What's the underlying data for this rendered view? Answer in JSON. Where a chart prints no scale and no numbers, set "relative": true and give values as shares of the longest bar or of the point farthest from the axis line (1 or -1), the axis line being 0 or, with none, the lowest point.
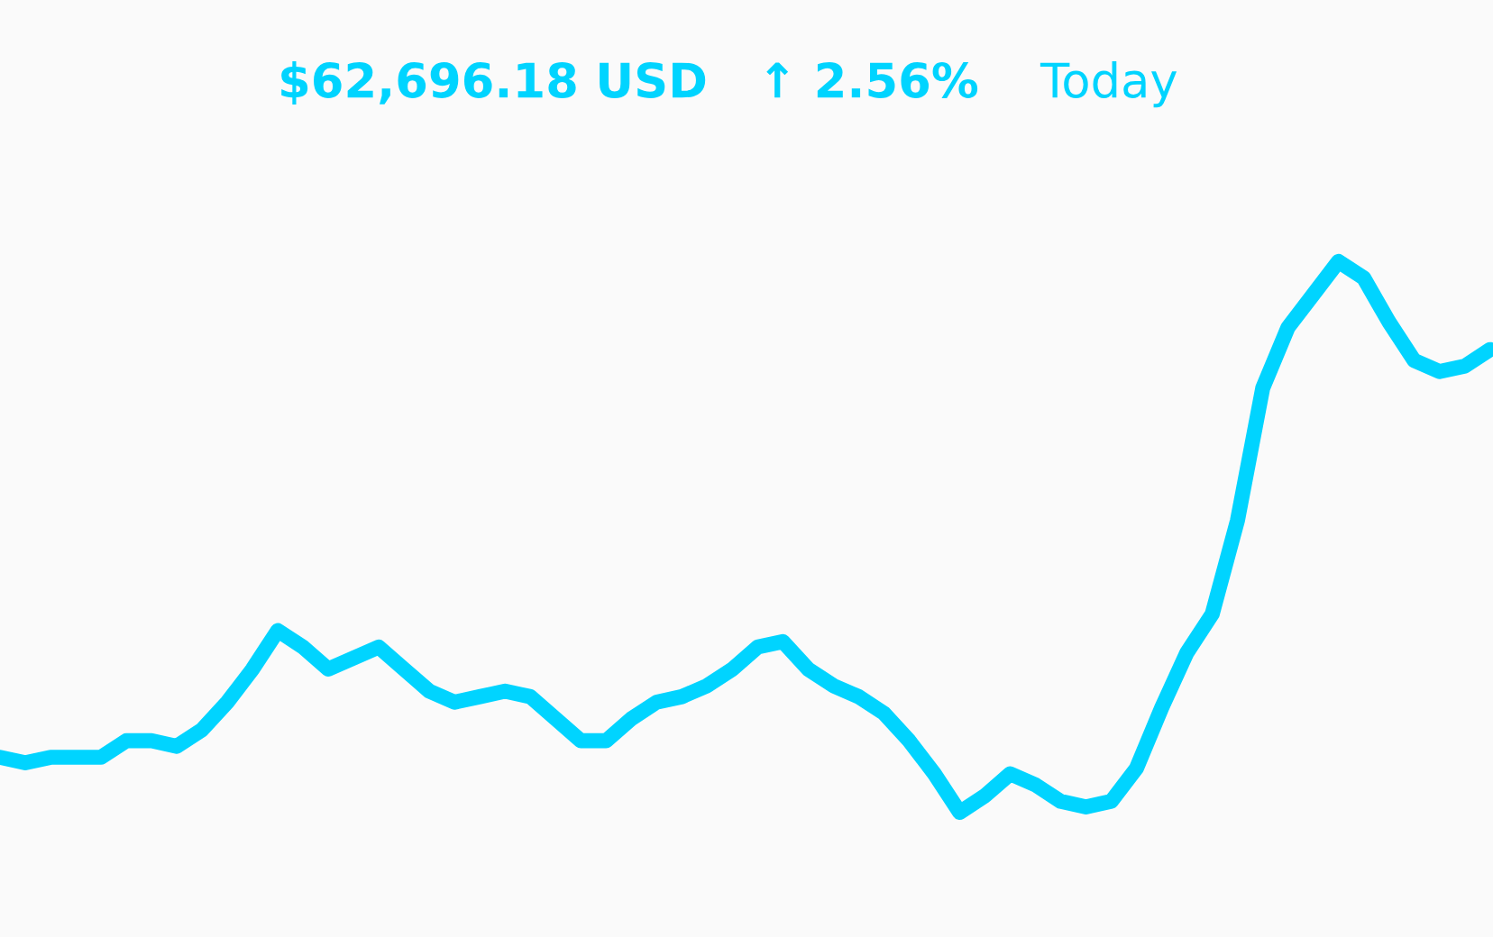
{
  "chart_data": {
    "type": "line",
    "title": "$62,696.18 USD   ↑ 2.56%",
    "subtitle": "Today",
    "relative": true,
    "categories": [
      null,
      null,
      null,
      null,
      null,
      null,
      null,
      null,
      null,
      null,
      null,
      null,
      null,
      null,
      null,
      null,
      null,
      null,
      null,
      null,
      null,
      null,
      null,
      null,
      null,
      null,
      null,
      null,
      null,
      null,
      null,
      null,
      null,
      null,
      null,
      null,
      null,
      null,
      null,
      null,
      null,
      null,
      null,
      null,
      null,
      null,
      null,
      null,
      null,
      null,
      null,
      null,
      null,
      null,
      null,
      null,
      null,
      null,
      null,
      null
    ],
    "series": [
      {
        "color": "#00d4ff",
        "values": [
          0.1,
          0.09,
          0.1,
          0.1,
          0.1,
          0.13,
          0.13,
          0.12,
          0.15,
          0.2,
          0.26,
          0.33,
          0.3,
          0.26,
          0.28,
          0.3,
          0.26,
          0.22,
          0.2,
          0.21,
          0.22,
          0.21,
          0.17,
          0.13,
          0.13,
          0.17,
          0.2,
          0.21,
          0.23,
          0.26,
          0.3,
          0.31,
          0.26,
          0.23,
          0.21,
          0.18,
          0.13,
          0.07,
          0,
          0.03,
          0.07,
          0.05,
          0.02,
          0.01,
          0.02,
          0.08,
          0.19,
          0.29,
          0.36,
          0.53,
          0.77,
          0.88,
          0.94,
          1,
          0.97,
          0.89,
          0.82,
          0.8,
          0.81,
          0.84
        ]
      }
    ],
    "legend": false,
    "marker": "none",
    "line_style": "solid",
    "tick_labels": false
  }
}
